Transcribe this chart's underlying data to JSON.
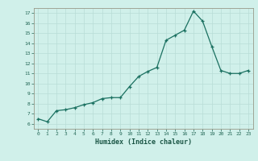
{
  "xlabel": "Humidex (Indice chaleur)",
  "ylabel": "",
  "x": [
    0,
    1,
    2,
    3,
    4,
    5,
    6,
    7,
    8,
    9,
    10,
    11,
    12,
    13,
    14,
    15,
    16,
    17,
    18,
    19,
    20,
    21,
    22,
    23
  ],
  "y": [
    6.5,
    6.2,
    7.3,
    7.4,
    7.6,
    7.9,
    8.1,
    8.5,
    8.6,
    8.6,
    9.7,
    10.7,
    11.2,
    11.6,
    14.3,
    14.8,
    15.3,
    17.2,
    16.2,
    13.7,
    11.3,
    11.0,
    11.0,
    11.3
  ],
  "xlim": [
    -0.5,
    23.5
  ],
  "ylim": [
    5.5,
    17.5
  ],
  "yticks": [
    6,
    7,
    8,
    9,
    10,
    11,
    12,
    13,
    14,
    15,
    16,
    17
  ],
  "xticks": [
    0,
    1,
    2,
    3,
    4,
    5,
    6,
    7,
    8,
    9,
    10,
    11,
    12,
    13,
    14,
    15,
    16,
    17,
    18,
    19,
    20,
    21,
    22,
    23
  ],
  "line_color": "#1a7060",
  "marker_color": "#1a7060",
  "bg_color": "#d0f0ea",
  "grid_color": "#b8ddd6",
  "axes_color": "#999988",
  "tick_label_color": "#226655",
  "xlabel_color": "#1a5545",
  "fig_bg": "#d0f0ea"
}
